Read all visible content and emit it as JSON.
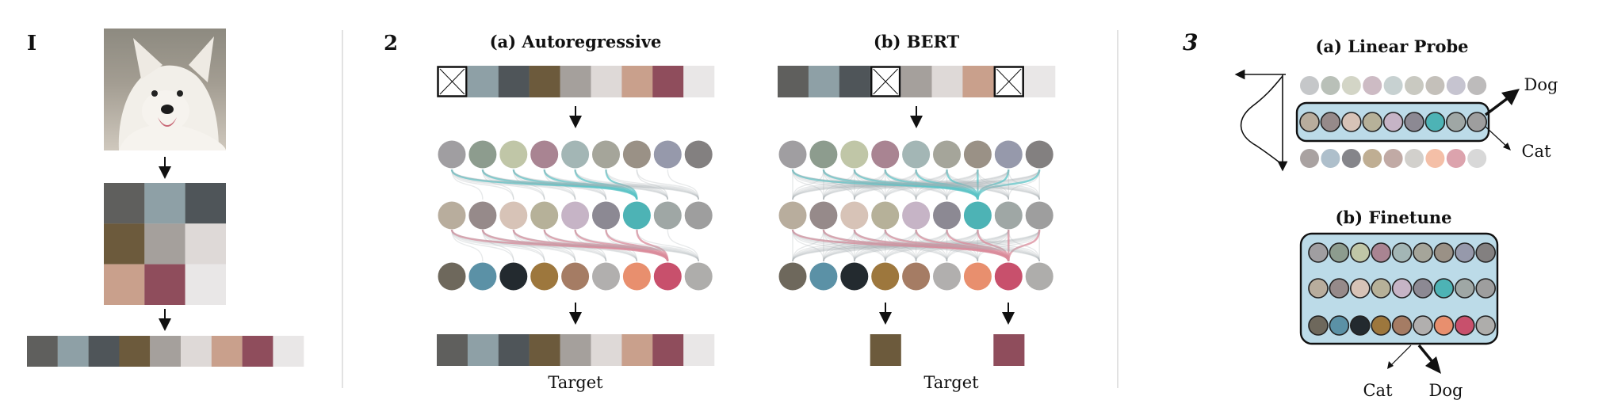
{
  "panel_numbers": [
    "I",
    "2",
    "3"
  ],
  "titles": {
    "autoregressive": "(a) Autoregressive",
    "bert": "(b) BERT",
    "linear_probe": "(a) Linear Probe",
    "finetune": "(b) Finetune"
  },
  "labels": {
    "target_ar": "Target",
    "target_bert": "Target",
    "probe_dog": "Dog",
    "probe_cat": "Cat",
    "finetune_cat": "Cat",
    "finetune_dog": "Dog"
  },
  "colors": {
    "sequence": [
      "#5f5f5d",
      "#8ea0a6",
      "#4f5559",
      "#6c5a3c",
      "#a5a09c",
      "#ded9d7",
      "#c9a08c",
      "#8f4d5c",
      "#e9e7e7"
    ],
    "row1": [
      "#a09ea1",
      "#8d9c8e",
      "#c0c6a7",
      "#a98492",
      "#a3b6b5",
      "#a5a59a",
      "#9a9186",
      "#9699ab",
      "#838080"
    ],
    "row2": [
      "#b8ad9d",
      "#968a8a",
      "#d7c3b7",
      "#b6b199",
      "#c6b4c6",
      "#8c8993",
      "#4db3b5",
      "#9fa7a5",
      "#9e9e9e"
    ],
    "row3": [
      "#6e685c",
      "#5b91a6",
      "#232a2f",
      "#9d773d",
      "#a57c64",
      "#b1afae",
      "#e88f6e",
      "#c8506c",
      "#aeadab"
    ],
    "probe_top": [
      "#c5c7c9",
      "#b9c0b8",
      "#d3d5c6",
      "#cdbbc4",
      "#c7d1d1",
      "#c9c9c1",
      "#c4c0ba",
      "#c6c4d0",
      "#bdbbbb"
    ],
    "probe_bottom": [
      "#a9a2a1",
      "#aebfcb",
      "#85858a",
      "#bfae93",
      "#c1aaa5",
      "#d2d0cc",
      "#f4bfa7",
      "#dca3ad",
      "#d8d8d8"
    ],
    "panel_fill": "#bcdbe8",
    "attn_teal": "#5bc3c6",
    "attn_pink": "#d98a9a",
    "attn_gray": "#a9b0b2"
  },
  "masks": {
    "autoregressive": [
      0
    ],
    "bert": [
      3,
      7
    ]
  },
  "targets": {
    "autoregressive": [
      0,
      1,
      2,
      3,
      4,
      5,
      6,
      7,
      8
    ],
    "bert": [
      3,
      7
    ]
  }
}
